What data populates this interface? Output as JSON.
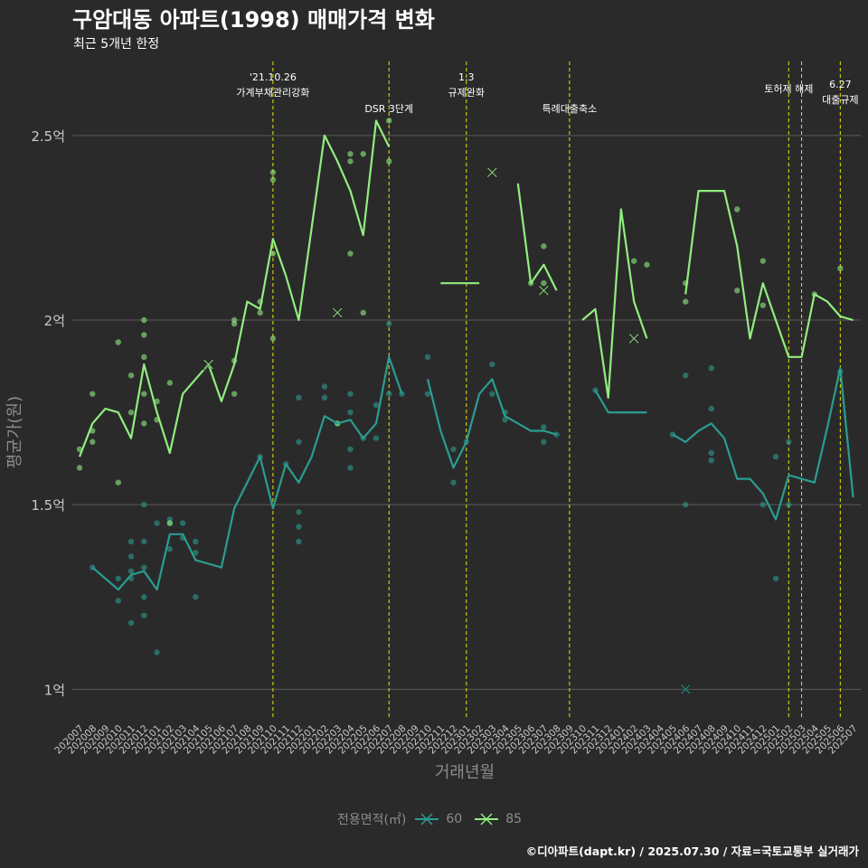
{
  "header": {
    "title": "구암대동 아파트(1998) 매매가격 변화",
    "subtitle": "최근 5개년 한정"
  },
  "caption": "©디아파트(dapt.kr) / 2025.07.30 / 자료=국토교통부 실거래가",
  "legend": {
    "title": "전용면적(㎡)",
    "items": [
      {
        "label": "60",
        "color": "#2a9d8f"
      },
      {
        "label": "85",
        "color": "#90ee7e"
      }
    ]
  },
  "colors": {
    "background": "#2b2a2b",
    "grid": "#5a5a5a",
    "event_line": "#e6e600",
    "series_60": "#2a9d8f",
    "series_85": "#90ee7e",
    "axis_text": "#c8c8c8",
    "axis_title": "#8c8c8c"
  },
  "chart_data": {
    "type": "line",
    "xlabel": "거래년월",
    "ylabel": "평균가(원)",
    "grid": true,
    "legend_position": "bottom",
    "ylim": [
      0.92,
      2.72
    ],
    "y_ticks": [
      {
        "value": 1.0,
        "label": "1억"
      },
      {
        "value": 1.5,
        "label": "1.5억"
      },
      {
        "value": 2.0,
        "label": "2억"
      },
      {
        "value": 2.5,
        "label": "2.5억"
      }
    ],
    "x": [
      "202007",
      "202008",
      "202009",
      "202010",
      "202011",
      "202012",
      "202101",
      "202102",
      "202103",
      "202104",
      "202105",
      "202106",
      "202107",
      "202108",
      "202109",
      "202110",
      "202111",
      "202112",
      "202201",
      "202202",
      "202203",
      "202204",
      "202205",
      "202206",
      "202207",
      "202208",
      "202209",
      "202210",
      "202211",
      "202212",
      "202301",
      "202302",
      "202303",
      "202304",
      "202305",
      "202306",
      "202307",
      "202308",
      "202309",
      "202310",
      "202311",
      "202312",
      "202401",
      "202402",
      "202403",
      "202404",
      "202405",
      "202406",
      "202407",
      "202408",
      "202409",
      "202410",
      "202411",
      "202412",
      "202501",
      "202502",
      "202503",
      "202504",
      "202505",
      "202506",
      "202507"
    ],
    "events": [
      {
        "x": "202110",
        "label": "'21.10.26\n가계부채관리강화"
      },
      {
        "x": "202207",
        "label": "DSR 3단계"
      },
      {
        "x": "202301",
        "label": "1.3\n규제완화"
      },
      {
        "x": "202309",
        "label": "특례대출축소"
      },
      {
        "x": "202502",
        "label": "토허제 해제"
      },
      {
        "x": "202503",
        "label": ""
      },
      {
        "x": "202506",
        "label": "6.27\n대출규제"
      }
    ],
    "series": [
      {
        "name": "60",
        "color": "#2a9d8f",
        "values": [
          null,
          1.33,
          1.3,
          1.27,
          1.31,
          1.32,
          1.27,
          1.42,
          1.42,
          1.35,
          1.34,
          1.33,
          1.49,
          1.56,
          1.63,
          1.49,
          1.61,
          1.56,
          1.63,
          1.74,
          1.72,
          1.73,
          1.68,
          1.72,
          1.9,
          1.8,
          null,
          1.84,
          1.7,
          1.6,
          1.67,
          1.8,
          1.84,
          1.74,
          1.72,
          1.7,
          1.7,
          1.69,
          null,
          null,
          1.81,
          1.75,
          1.75,
          1.75,
          1.75,
          null,
          1.69,
          1.67,
          1.7,
          1.72,
          1.68,
          1.57,
          1.57,
          1.53,
          1.46,
          1.58,
          1.57,
          1.56,
          1.71,
          1.87,
          1.52
        ],
        "points": [
          {
            "x": "202008",
            "y": 1.33
          },
          {
            "x": "202010",
            "y": 1.3
          },
          {
            "x": "202010",
            "y": 1.24
          },
          {
            "x": "202011",
            "y": 1.4
          },
          {
            "x": "202011",
            "y": 1.36
          },
          {
            "x": "202011",
            "y": 1.32
          },
          {
            "x": "202011",
            "y": 1.3
          },
          {
            "x": "202011",
            "y": 1.18
          },
          {
            "x": "202012",
            "y": 1.5
          },
          {
            "x": "202012",
            "y": 1.4
          },
          {
            "x": "202012",
            "y": 1.33
          },
          {
            "x": "202012",
            "y": 1.25
          },
          {
            "x": "202012",
            "y": 1.2
          },
          {
            "x": "202101",
            "y": 1.45
          },
          {
            "x": "202101",
            "y": 1.1
          },
          {
            "x": "202102",
            "y": 1.46
          },
          {
            "x": "202102",
            "y": 1.45
          },
          {
            "x": "202102",
            "y": 1.38
          },
          {
            "x": "202103",
            "y": 1.45
          },
          {
            "x": "202103",
            "y": 1.41
          },
          {
            "x": "202104",
            "y": 1.4
          },
          {
            "x": "202104",
            "y": 1.37
          },
          {
            "x": "202104",
            "y": 1.25
          },
          {
            "x": "202109",
            "y": 1.63
          },
          {
            "x": "202111",
            "y": 1.61
          },
          {
            "x": "202112",
            "y": 1.79
          },
          {
            "x": "202112",
            "y": 1.67
          },
          {
            "x": "202112",
            "y": 1.48
          },
          {
            "x": "202112",
            "y": 1.44
          },
          {
            "x": "202112",
            "y": 1.4
          },
          {
            "x": "202202",
            "y": 1.82
          },
          {
            "x": "202202",
            "y": 1.79
          },
          {
            "x": "202203",
            "y": 1.72
          },
          {
            "x": "202204",
            "y": 1.8
          },
          {
            "x": "202204",
            "y": 1.75
          },
          {
            "x": "202204",
            "y": 1.65
          },
          {
            "x": "202204",
            "y": 1.6
          },
          {
            "x": "202205",
            "y": 1.68
          },
          {
            "x": "202206",
            "y": 1.77
          },
          {
            "x": "202206",
            "y": 1.68
          },
          {
            "x": "202207",
            "y": 1.99
          },
          {
            "x": "202207",
            "y": 1.8
          },
          {
            "x": "202208",
            "y": 1.8
          },
          {
            "x": "202210",
            "y": 1.9
          },
          {
            "x": "202210",
            "y": 1.8
          },
          {
            "x": "202212",
            "y": 1.65
          },
          {
            "x": "202212",
            "y": 1.56
          },
          {
            "x": "202301",
            "y": 1.67
          },
          {
            "x": "202303",
            "y": 1.88
          },
          {
            "x": "202303",
            "y": 1.8
          },
          {
            "x": "202304",
            "y": 1.75
          },
          {
            "x": "202304",
            "y": 1.73
          },
          {
            "x": "202307",
            "y": 1.71
          },
          {
            "x": "202307",
            "y": 1.67
          },
          {
            "x": "202308",
            "y": 1.69
          },
          {
            "x": "202311",
            "y": 1.81
          },
          {
            "x": "202405",
            "y": 1.69
          },
          {
            "x": "202406",
            "y": 1.85
          },
          {
            "x": "202406",
            "y": 1.5
          },
          {
            "x": "202408",
            "y": 1.87
          },
          {
            "x": "202408",
            "y": 1.76
          },
          {
            "x": "202408",
            "y": 1.64
          },
          {
            "x": "202408",
            "y": 1.62
          },
          {
            "x": "202412",
            "y": 1.5
          },
          {
            "x": "202501",
            "y": 1.63
          },
          {
            "x": "202501",
            "y": 1.3
          },
          {
            "x": "202502",
            "y": 1.67
          },
          {
            "x": "202502",
            "y": 1.5
          },
          {
            "x": "202506",
            "y": 1.86
          }
        ],
        "marked": [
          {
            "x": "202406",
            "y": 1.0
          }
        ]
      },
      {
        "name": "85",
        "color": "#90ee7e",
        "values": [
          1.63,
          1.72,
          1.76,
          1.75,
          1.68,
          1.88,
          1.75,
          1.64,
          1.8,
          1.84,
          1.88,
          1.78,
          1.88,
          2.05,
          2.03,
          2.22,
          2.12,
          2.0,
          2.25,
          2.5,
          2.43,
          2.35,
          2.23,
          2.54,
          2.47,
          null,
          null,
          null,
          2.1,
          2.1,
          2.1,
          2.1,
          null,
          null,
          2.37,
          2.1,
          2.15,
          2.08,
          null,
          2.0,
          2.03,
          1.79,
          2.3,
          2.05,
          1.95,
          null,
          null,
          2.07,
          2.35,
          2.35,
          2.35,
          2.2,
          1.95,
          2.1,
          2.0,
          1.9,
          1.9,
          2.07,
          2.05,
          2.01,
          2.0
        ],
        "points": [
          {
            "x": "202007",
            "y": 1.65
          },
          {
            "x": "202007",
            "y": 1.6
          },
          {
            "x": "202008",
            "y": 1.8
          },
          {
            "x": "202008",
            "y": 1.7
          },
          {
            "x": "202008",
            "y": 1.67
          },
          {
            "x": "202010",
            "y": 1.94
          },
          {
            "x": "202010",
            "y": 1.56
          },
          {
            "x": "202011",
            "y": 1.85
          },
          {
            "x": "202011",
            "y": 1.75
          },
          {
            "x": "202012",
            "y": 2.0
          },
          {
            "x": "202012",
            "y": 1.96
          },
          {
            "x": "202012",
            "y": 1.9
          },
          {
            "x": "202012",
            "y": 1.8
          },
          {
            "x": "202012",
            "y": 1.72
          },
          {
            "x": "202101",
            "y": 1.78
          },
          {
            "x": "202101",
            "y": 1.73
          },
          {
            "x": "202102",
            "y": 1.83
          },
          {
            "x": "202102",
            "y": 1.45
          },
          {
            "x": "202107",
            "y": 2.0
          },
          {
            "x": "202107",
            "y": 1.99
          },
          {
            "x": "202107",
            "y": 1.89
          },
          {
            "x": "202107",
            "y": 1.8
          },
          {
            "x": "202109",
            "y": 2.05
          },
          {
            "x": "202109",
            "y": 2.02
          },
          {
            "x": "202110",
            "y": 2.4
          },
          {
            "x": "202110",
            "y": 2.38
          },
          {
            "x": "202110",
            "y": 2.18
          },
          {
            "x": "202110",
            "y": 1.95
          },
          {
            "x": "202203",
            "y": 1.72
          },
          {
            "x": "202204",
            "y": 2.45
          },
          {
            "x": "202204",
            "y": 2.43
          },
          {
            "x": "202204",
            "y": 2.18
          },
          {
            "x": "202205",
            "y": 2.45
          },
          {
            "x": "202205",
            "y": 2.02
          },
          {
            "x": "202207",
            "y": 2.54
          },
          {
            "x": "202207",
            "y": 2.43
          },
          {
            "x": "202306",
            "y": 2.1
          },
          {
            "x": "202307",
            "y": 2.2
          },
          {
            "x": "202307",
            "y": 2.1
          },
          {
            "x": "202402",
            "y": 2.16
          },
          {
            "x": "202403",
            "y": 2.15
          },
          {
            "x": "202406",
            "y": 2.1
          },
          {
            "x": "202406",
            "y": 2.05
          },
          {
            "x": "202410",
            "y": 2.3
          },
          {
            "x": "202410",
            "y": 2.08
          },
          {
            "x": "202412",
            "y": 2.16
          },
          {
            "x": "202412",
            "y": 2.04
          },
          {
            "x": "202504",
            "y": 2.07
          },
          {
            "x": "202506",
            "y": 2.14
          }
        ],
        "marked": [
          {
            "x": "202105",
            "y": 1.88
          },
          {
            "x": "202203",
            "y": 2.02
          },
          {
            "x": "202303",
            "y": 2.4
          },
          {
            "x": "202307",
            "y": 2.08
          },
          {
            "x": "202402",
            "y": 1.95
          }
        ]
      }
    ]
  }
}
